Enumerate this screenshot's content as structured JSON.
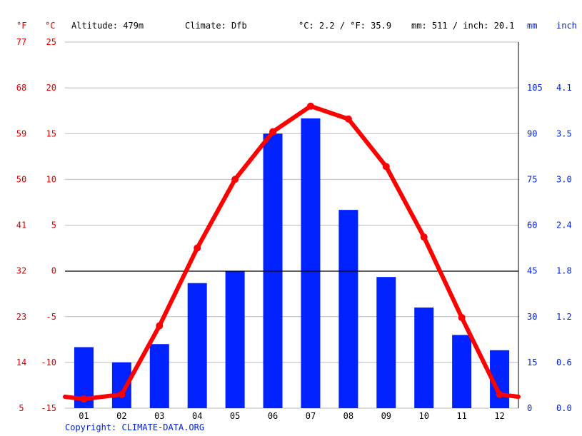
{
  "header": {
    "f_unit": "°F",
    "c_unit": "°C",
    "altitude": "Altitude: 479m",
    "climate": "Climate: Dfb",
    "temp_avg": "°C: 2.2 / °F: 35.9",
    "precip_total": "mm: 511 / inch: 20.1",
    "mm_unit": "mm",
    "inch_unit": "inch"
  },
  "copyright": "Copyright: CLIMATE-DATA.ORG",
  "colors": {
    "temperature": "#ff0000",
    "precipitation": "#0022ff",
    "temp_axis_text": "#dd0000",
    "precip_axis_text": "#0022dd",
    "grid": "#bbbbbb",
    "zero_line": "#000000"
  },
  "chart_data": {
    "type": "bar+line",
    "categories": [
      "01",
      "02",
      "03",
      "04",
      "05",
      "06",
      "07",
      "08",
      "09",
      "10",
      "11",
      "12"
    ],
    "series": [
      {
        "kind": "bar",
        "axis": "precipitation",
        "values": [
          20,
          15,
          21,
          41,
          45,
          90,
          95,
          65,
          43,
          33,
          24,
          19
        ]
      },
      {
        "kind": "line",
        "axis": "temperature",
        "values": [
          -14.0,
          -13.5,
          -6.0,
          2.5,
          10.0,
          15.2,
          18.0,
          16.6,
          11.4,
          3.7,
          -5.1,
          -13.5
        ]
      }
    ],
    "temperature_axis": {
      "ylim": [
        -15,
        25
      ],
      "ticks_c": [
        "-15",
        "-10",
        "-5",
        "0",
        "5",
        "10",
        "15",
        "20",
        "25"
      ],
      "ticks_f": [
        "5",
        "14",
        "23",
        "32",
        "41",
        "50",
        "59",
        "68",
        "77"
      ]
    },
    "precipitation_axis": {
      "ylim": [
        0,
        105
      ],
      "ticks_mm": [
        "0",
        "15",
        "30",
        "45",
        "60",
        "75",
        "90",
        "105"
      ],
      "ticks_inch": [
        "0.0",
        "0.6",
        "1.2",
        "1.8",
        "2.4",
        "3.0",
        "3.5",
        "4.1"
      ]
    },
    "grid": true
  }
}
